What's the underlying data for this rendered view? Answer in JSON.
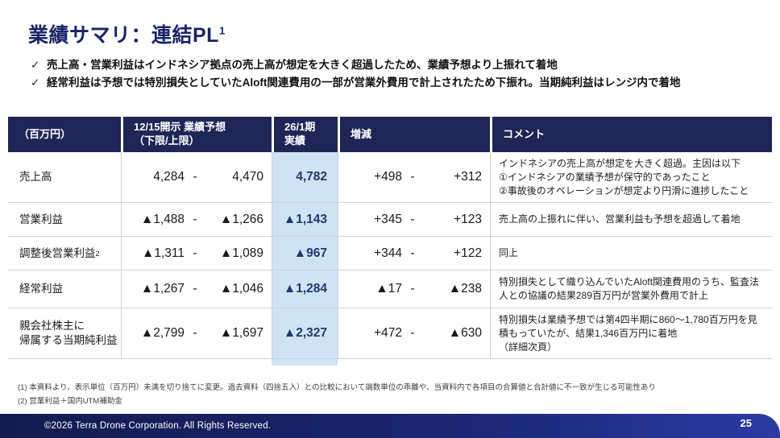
{
  "header": {
    "title": "業績サマリ：連結PL",
    "title_sup": "1",
    "check_glyph": "✓",
    "bullets": [
      "売上高・営業利益はインドネシア拠点の売上高が想定を大きく超過したため、業績予想より上振れて着地",
      "経常利益は予想では特別損失としていたAloft関連費用の一部が営業外費用で計上されたため下振れ。当期純利益はレンジ内で着地"
    ]
  },
  "table": {
    "range_separator": "-",
    "headers": {
      "unit": "（百万円）",
      "forecast": "12/15開示 業績予想\n（下限/上限）",
      "actual": "26/1期\n実績",
      "delta": "増減",
      "comment": "コメント"
    },
    "rows": [
      {
        "label": "売上高",
        "label_sup": "",
        "forecast_low": "4,284",
        "forecast_high": "4,470",
        "actual": "4,782",
        "delta_low": "+498",
        "delta_high": "+312",
        "comment": "インドネシアの売上高が想定を大きく超過。主因は以下\n①インドネシアの業績予想が保守的であったこと\n②事故後のオペレーションが想定より円滑に進捗したこと"
      },
      {
        "label": "営業利益",
        "label_sup": "",
        "forecast_low": "▲1,488",
        "forecast_high": "▲1,266",
        "actual": "▲1,143",
        "delta_low": "+345",
        "delta_high": "+123",
        "comment": "売上高の上振れに伴い、営業利益も予想を超過して着地"
      },
      {
        "label": "調整後営業利益",
        "label_sup": "2",
        "forecast_low": "▲1,311",
        "forecast_high": "▲1,089",
        "actual": "▲967",
        "delta_low": "+344",
        "delta_high": "+122",
        "comment": "同上"
      },
      {
        "label": "経常利益",
        "label_sup": "",
        "forecast_low": "▲1,267",
        "forecast_high": "▲1,046",
        "actual": "▲1,284",
        "delta_low": "▲17",
        "delta_high": "▲238",
        "comment": "特別損失として織り込んでいたAloft関連費用のうち、監査法人との協議の結果289百万円が営業外費用で計上"
      },
      {
        "label": "親会社株主に\n帰属する当期純利益",
        "label_sup": "",
        "forecast_low": "▲2,799",
        "forecast_high": "▲1,697",
        "actual": "▲2,327",
        "delta_low": "+472",
        "delta_high": "▲630",
        "comment": "特別損失は業績予想では第4四半期に860～1,780百万円を見積もっていたが、結果1,346百万円に着地\n（詳細次頁）"
      }
    ]
  },
  "footnotes": [
    "(1) 本資料より、表示単位（百万円）未満を切り捨てに変更。過去資料（四捨五入）との比較において端数単位の乖離や、当資料内で各項目の合算値と合計値に不一致が生じる可能性あり",
    "(2) 営業利益＋国内UTM補助金"
  ],
  "footer": {
    "copyright": "©2026 Terra Drone Corporation. All Rights Reserved.",
    "page_number": "25"
  },
  "colors": {
    "brand_navy": "#1b2368",
    "table_header_bg": "#1f2656",
    "highlight_bg": "#cfe3f5",
    "highlight_text": "#1e3a6e",
    "footer_bar_left": "#141b4f",
    "footer_bar_right": "#2a3ba2"
  }
}
